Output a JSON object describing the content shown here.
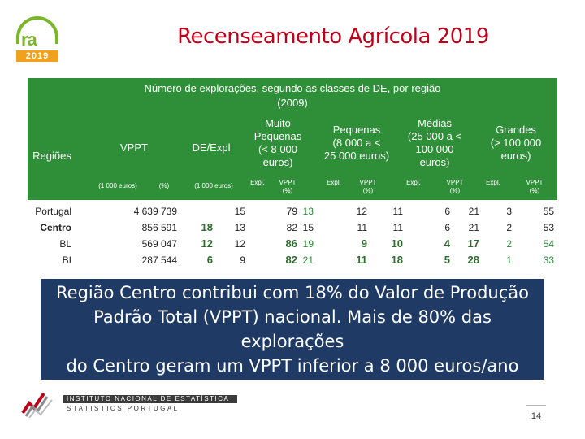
{
  "logo": {
    "text": "ra",
    "year": "2019"
  },
  "title": "Recenseamento Agrícola 2019",
  "table": {
    "caption_line1": "Número de explorações, segundo as classes de DE, por região",
    "caption_line2": "(2009)",
    "col_regioes": "Regiões",
    "col_vppt": "VPPT",
    "col_dexpl": "DE/Expl",
    "col_muito_pequenas": [
      "Muito",
      "Pequenas",
      "(< 8 000",
      "euros)"
    ],
    "col_pequenas": [
      "Pequenas",
      "(8 000 a <",
      "25 000 euros)"
    ],
    "col_medias": [
      "Médias",
      "(25 000 a <",
      "100 000",
      "euros)"
    ],
    "col_grandes": [
      "Grandes",
      "(> 100 000",
      "euros)"
    ],
    "sub_1000_euros": "(1 000 euros)",
    "sub_pct": "(%)",
    "sub_expl": "Expl.",
    "sub_vppt": "VPPT",
    "sub_vppt_pct": "(%)",
    "rows": [
      {
        "region": "Portugal",
        "vppt": "4 639 739",
        "pct": "",
        "de": "15",
        "mp_e": "79",
        "mp_v": "13",
        "p_e": "12",
        "p_v": "11",
        "m_e": "6",
        "m_v": "21",
        "g_e": "3",
        "g_v": "55"
      },
      {
        "region": "Centro",
        "vppt": "856 591",
        "pct": "18",
        "de": "13",
        "mp_e": "82",
        "mp_v": "15",
        "p_e": "11",
        "p_v": "11",
        "m_e": "6",
        "m_v": "21",
        "g_e": "2",
        "g_v": "53"
      },
      {
        "region": "BL",
        "vppt": "569 047",
        "pct": "12",
        "de": "12",
        "mp_e": "86",
        "mp_v": "19",
        "p_e": "9",
        "p_v": "10",
        "m_e": "4",
        "m_v": "17",
        "g_e": "2",
        "g_v": "54"
      },
      {
        "region": "BI",
        "vppt": "287 544",
        "pct": "6",
        "de": "9",
        "mp_e": "82",
        "mp_v": "21",
        "p_e": "11",
        "p_v": "18",
        "m_e": "5",
        "m_v": "28",
        "g_e": "1",
        "g_v": "33"
      }
    ]
  },
  "callout": {
    "line1": "Região Centro contribui com 18% do Valor de Produção",
    "line2": "Padrão Total (VPPT) nacional. Mais de 80% das explorações",
    "line3": "do Centro geram um VPPT inferior a 8 000 euros/ano"
  },
  "footer": {
    "org_line1": "INSTITUTO NACIONAL DE ESTATÍSTICA",
    "org_line2": "STATISTICS PORTUGAL",
    "page_number": "14"
  }
}
